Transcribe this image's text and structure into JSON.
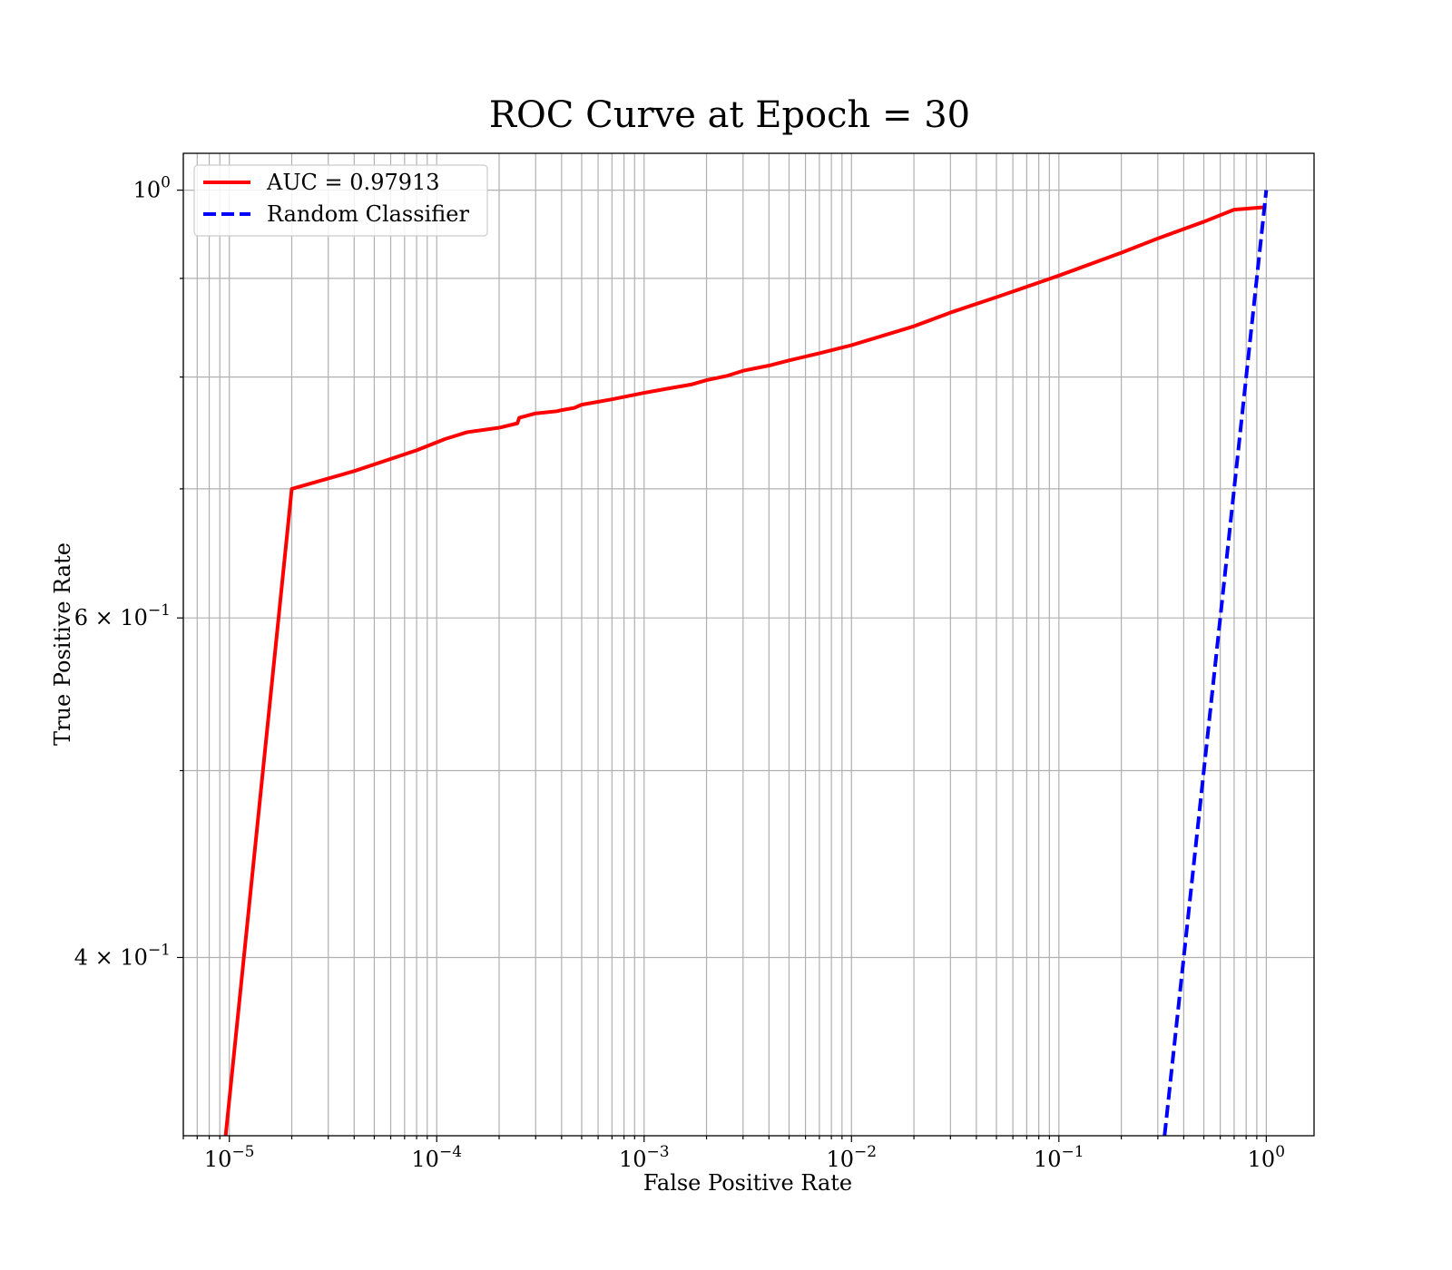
{
  "chart_data": {
    "type": "line",
    "title": "ROC Curve at Epoch = 30",
    "xlabel": "False Positive Rate",
    "ylabel": "True Positive Rate",
    "xscale": "log",
    "yscale": "log",
    "xlim": [
      6e-06,
      1.7
    ],
    "ylim": [
      0.3233,
      1.045
    ],
    "grid": "both major and minor",
    "legend_position": "upper-left",
    "x_ticks": [
      {
        "value": 1e-05,
        "base": "10",
        "exp": "−5"
      },
      {
        "value": 0.0001,
        "base": "10",
        "exp": "−4"
      },
      {
        "value": 0.001,
        "base": "10",
        "exp": "−3"
      },
      {
        "value": 0.01,
        "base": "10",
        "exp": "−2"
      },
      {
        "value": 0.1,
        "base": "10",
        "exp": "−1"
      },
      {
        "value": 1,
        "base": "10",
        "exp": "0"
      }
    ],
    "y_ticks": [
      {
        "value": 1,
        "base": "10",
        "exp": "0"
      },
      {
        "value": 0.6,
        "base": "6 × 10",
        "exp": "−1"
      },
      {
        "value": 0.4,
        "base": "4 × 10",
        "exp": "−1"
      }
    ],
    "series": [
      {
        "name": "AUC = 0.97913",
        "color": "#ff0000",
        "style": "solid",
        "x": [
          9.6e-06,
          2e-05,
          4e-05,
          8e-05,
          0.00011,
          0.00014,
          0.0002,
          0.000245,
          0.00025,
          0.0003,
          0.00038,
          0.0004,
          0.00046,
          0.0005,
          0.0007,
          0.001,
          0.0013,
          0.0017,
          0.002,
          0.0025,
          0.003,
          0.004,
          0.005,
          0.007,
          0.01,
          0.02,
          0.03,
          0.05,
          0.1,
          0.2,
          0.3,
          0.5,
          0.7,
          1.0
        ],
        "y": [
          0.3233,
          0.7,
          0.715,
          0.733,
          0.743,
          0.749,
          0.753,
          0.757,
          0.762,
          0.766,
          0.768,
          0.769,
          0.771,
          0.774,
          0.779,
          0.785,
          0.789,
          0.793,
          0.797,
          0.801,
          0.806,
          0.811,
          0.816,
          0.823,
          0.831,
          0.85,
          0.864,
          0.88,
          0.903,
          0.928,
          0.944,
          0.963,
          0.977,
          0.98
        ]
      },
      {
        "name": "Random Classifier",
        "color": "#0000ff",
        "style": "dashed",
        "x": [
          0.3233,
          1.0
        ],
        "y": [
          0.3233,
          1.0
        ]
      }
    ]
  }
}
